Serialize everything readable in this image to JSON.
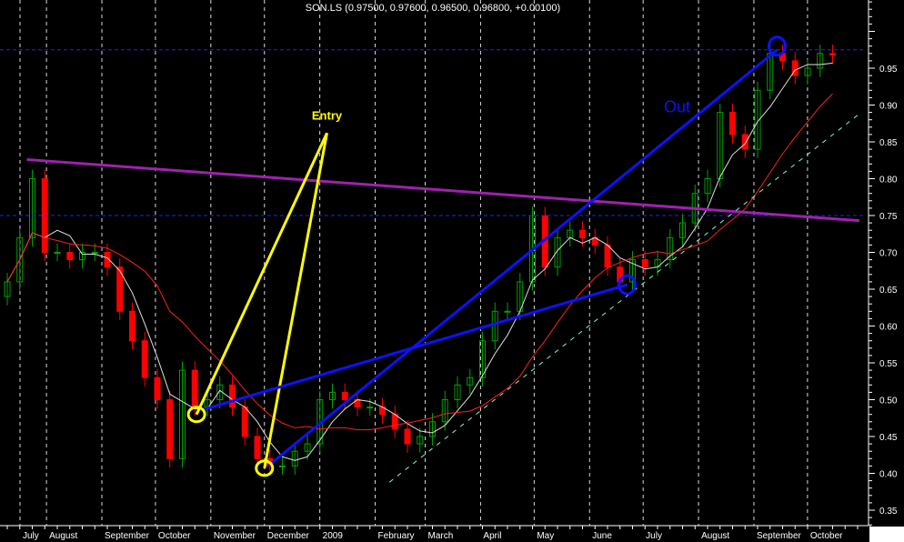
{
  "chart_data": {
    "type": "candlestick",
    "title": "SON.LS (0.97500, 0.97600, 0.96500, 0.96800, +0.00100)",
    "interval": "weekly",
    "start_date": "2008-07-07",
    "close": [
      0.66,
      0.72,
      0.8,
      0.7,
      0.7,
      0.69,
      0.7,
      0.7,
      0.68,
      0.62,
      0.58,
      0.53,
      0.5,
      0.42,
      0.54,
      0.49,
      0.5,
      0.52,
      0.49,
      0.45,
      0.42,
      0.41,
      0.41,
      0.43,
      0.44,
      0.5,
      0.51,
      0.5,
      0.49,
      0.49,
      0.48,
      0.46,
      0.44,
      0.45,
      0.47,
      0.5,
      0.52,
      0.53,
      0.58,
      0.62,
      0.62,
      0.66,
      0.75,
      0.68,
      0.72,
      0.73,
      0.72,
      0.71,
      0.68,
      0.66,
      0.69,
      0.68,
      0.69,
      0.72,
      0.74,
      0.78,
      0.8,
      0.89,
      0.86,
      0.84,
      0.92,
      0.97,
      0.96,
      0.94,
      0.95,
      0.97,
      0.968
    ],
    "y_axis": {
      "side": "right",
      "ylim": [
        0.33,
        1.045
      ],
      "ticks": [
        "0.95",
        "0.90",
        "0.85",
        "0.80",
        "0.75",
        "0.70",
        "0.65",
        "0.60",
        "0.55",
        "0.50",
        "0.45",
        "0.40",
        "0.35"
      ]
    },
    "x_axis": {
      "labels": [
        "July",
        "August",
        "September",
        "October",
        "November",
        "December",
        "2009",
        "February",
        "March",
        "April",
        "May",
        "June",
        "July",
        "August",
        "September",
        "October"
      ]
    },
    "moving_averages": [
      {
        "period_weeks": 4,
        "color": "#e0e0e0"
      },
      {
        "period_weeks": 11,
        "color": "#ff2020"
      }
    ],
    "colors": {
      "up": "#00a000",
      "down": "#ff0000",
      "grid": "#ffffff"
    },
    "grid": "vertical-dashed",
    "annotations": {
      "hlines": [
        {
          "price": 0.975,
          "color": "#2020ff",
          "style": "dashed"
        },
        {
          "price": 0.75,
          "color": "#2020ff",
          "style": "dashed"
        }
      ],
      "lines": [
        {
          "from": [
            "2008-07-21",
            0.826
          ],
          "to": [
            "2009-10-30",
            0.743
          ],
          "color": "#a020b0"
        },
        {
          "from": [
            "2008-10-24",
            0.48
          ],
          "to": [
            "2009-01-05",
            0.862
          ],
          "color": "#ffff00"
        },
        {
          "from": [
            "2009-01-05",
            0.862
          ],
          "to": [
            "2008-12-01",
            0.407
          ],
          "color": "#ffff00"
        },
        {
          "from": [
            "2008-10-27",
            0.486
          ],
          "to": [
            "2009-06-22",
            0.656
          ],
          "color": "#1010ff"
        },
        {
          "from": [
            "2008-12-03",
            0.41
          ],
          "to": [
            "2009-09-14",
            0.975
          ],
          "color": "#1010ff"
        },
        {
          "from": [
            "2009-02-09",
            0.388
          ],
          "to": [
            "2009-10-30",
            0.888
          ],
          "color": "#80ffc0",
          "style": "dashed"
        }
      ],
      "circles": [
        {
          "at": [
            "2008-10-24",
            0.48
          ],
          "color": "#ffff00"
        },
        {
          "at": [
            "2008-12-01",
            0.407
          ],
          "color": "#ffff00"
        },
        {
          "at": [
            "2009-06-22",
            0.656
          ],
          "color": "#1010ff"
        },
        {
          "at": [
            "2009-09-14",
            0.98
          ],
          "color": "#1010ff"
        }
      ],
      "texts": [
        {
          "text": "Entry",
          "at": [
            "2009-01-05",
            0.88
          ],
          "color": "#ffff00"
        },
        {
          "text": "Out",
          "at": [
            "2009-07-20",
            0.89
          ],
          "color": "#1010ff"
        }
      ]
    }
  }
}
